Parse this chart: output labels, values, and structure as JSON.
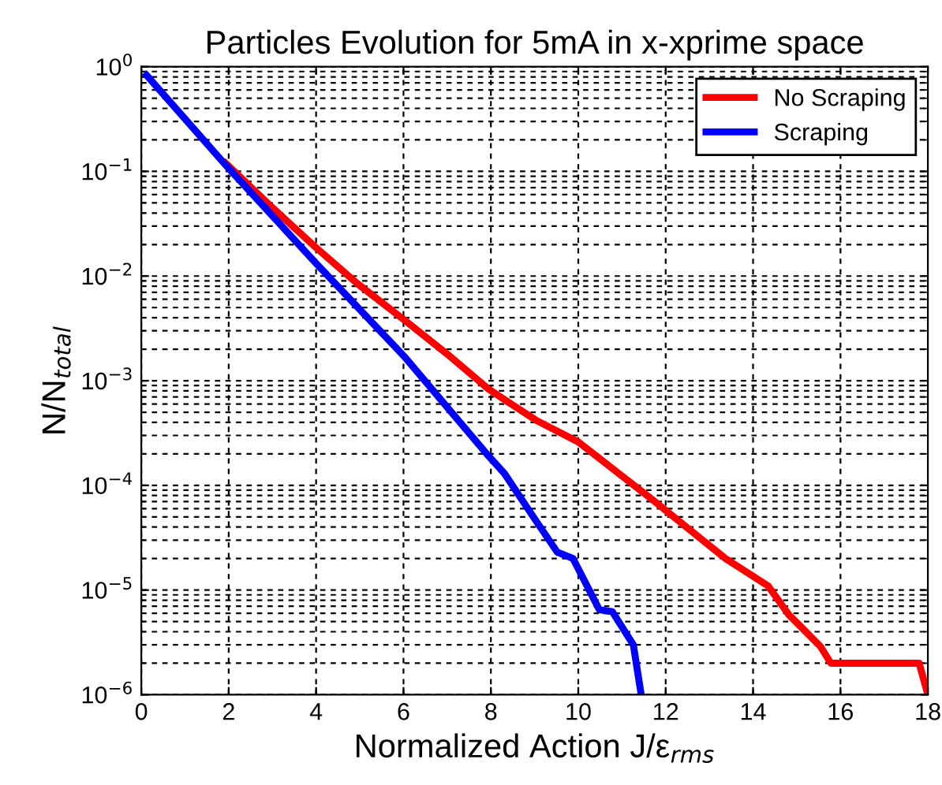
{
  "chart_data": {
    "type": "line",
    "title": "Particles Evolution for 5mA in x-xprime space",
    "xlabel": "Normalized Action J/ε$_{rms}$",
    "ylabel": "N/N$_{total}$",
    "log": "y",
    "grid": true,
    "legend": "top right",
    "line_style": "solid",
    "marker": "none",
    "xlim": [
      0,
      18
    ],
    "xticks": [
      0,
      2,
      4,
      6,
      8,
      10,
      12,
      14,
      16,
      18
    ],
    "ylim": [
      1e-06,
      1
    ],
    "yticks": [
      {
        "value": 1e-06,
        "label": "10$^{−6}$"
      },
      {
        "value": 1e-05,
        "label": "10$^{−5}$"
      },
      {
        "value": 0.0001,
        "label": "10$^{−4}$"
      },
      {
        "value": 0.001,
        "label": "10$^{−3}$"
      },
      {
        "value": 0.01,
        "label": "10$^{−2}$"
      },
      {
        "value": 0.1,
        "label": "10$^{−1}$"
      },
      {
        "value": 1,
        "label": "10$^{0}$"
      }
    ],
    "series": [
      {
        "name": "No Scraping",
        "color": "#ff0000",
        "x": [
          1.93,
          3.0,
          3.98,
          4.94,
          6.02,
          7.0,
          7.95,
          8.31,
          9.03,
          10.0,
          11.68,
          13.37,
          14.34,
          14.82,
          15.54,
          15.78,
          17.8,
          18.0
        ],
        "values": [
          0.12,
          0.045,
          0.019,
          0.0085,
          0.0038,
          0.0018,
          0.00083,
          0.00066,
          0.00042,
          0.00026,
          7.4e-05,
          2e-05,
          1.1e-05,
          5.8e-06,
          2.9e-06,
          2e-06,
          2e-06,
          1e-06
        ]
      },
      {
        "name": "Scraping",
        "color": "#0000ff",
        "x": [
          0.12,
          1.93,
          3.98,
          6.02,
          7.95,
          8.31,
          9.03,
          9.52,
          9.88,
          10.48,
          10.78,
          11.26,
          11.44
        ],
        "values": [
          0.83,
          0.115,
          0.0135,
          0.0017,
          0.00019,
          0.00013,
          4.6e-05,
          2.3e-05,
          2e-05,
          6.5e-06,
          6.2e-06,
          3e-06,
          1e-06
        ]
      }
    ]
  }
}
